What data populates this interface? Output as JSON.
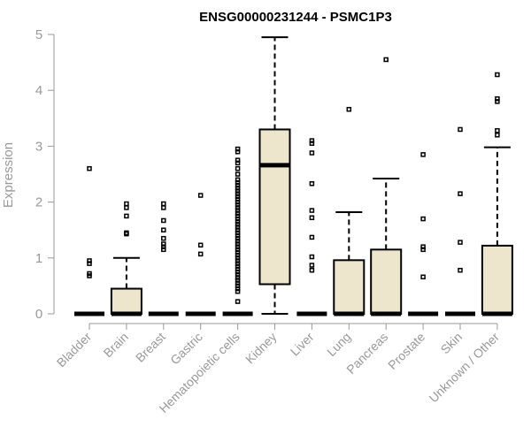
{
  "chart_data": {
    "type": "box",
    "title": "ENSG00000231244 - PSMC1P3",
    "ylabel": "Expression",
    "xlabel": "",
    "ylim": [
      0,
      5
    ],
    "yticks": [
      0,
      1,
      2,
      3,
      4,
      5
    ],
    "grid": false,
    "categories": [
      "Bladder",
      "Brain",
      "Breast",
      "Gastric",
      "Hematopoietic cells",
      "Kidney",
      "Liver",
      "Lung",
      "Pancreas",
      "Prostate",
      "Skin",
      "Unknown / Other"
    ],
    "boxes": [
      {
        "name": "Bladder",
        "min": 0,
        "q1": 0,
        "median": 0,
        "q3": 0,
        "max": 0,
        "outliers": [
          2.6,
          0.95,
          0.9,
          0.72,
          0.68
        ]
      },
      {
        "name": "Brain",
        "min": 0,
        "q1": 0,
        "median": 0,
        "q3": 0.45,
        "max": 1.0,
        "outliers": [
          1.97,
          1.9,
          1.75,
          1.45,
          1.43
        ]
      },
      {
        "name": "Breast",
        "min": 0,
        "q1": 0,
        "median": 0,
        "q3": 0,
        "max": 0,
        "outliers": [
          1.97,
          1.9,
          1.67,
          1.5,
          1.35,
          1.25,
          1.2,
          1.15
        ]
      },
      {
        "name": "Gastric",
        "min": 0,
        "q1": 0,
        "median": 0,
        "q3": 0,
        "max": 0,
        "outliers": [
          2.12,
          1.23,
          1.07
        ]
      },
      {
        "name": "Hematopoietic cells",
        "min": 0,
        "q1": 0,
        "median": 0,
        "q3": 0,
        "max": 0,
        "outliers": [
          2.95,
          2.9,
          2.75,
          2.7,
          2.6,
          2.5,
          2.4,
          2.35,
          2.3,
          2.25,
          2.2,
          2.15,
          2.1,
          2.05,
          2.0,
          1.95,
          1.9,
          1.85,
          1.8,
          1.75,
          1.7,
          1.65,
          1.6,
          1.55,
          1.5,
          1.45,
          1.4,
          1.35,
          1.3,
          1.25,
          1.2,
          1.15,
          1.1,
          1.05,
          1.0,
          0.95,
          0.9,
          0.85,
          0.8,
          0.75,
          0.7,
          0.65,
          0.6,
          0.55,
          0.5,
          0.45,
          0.4,
          0.22
        ]
      },
      {
        "name": "Kidney",
        "min": 0,
        "q1": 0.53,
        "median": 2.66,
        "q3": 3.3,
        "max": 4.95,
        "outliers": []
      },
      {
        "name": "Liver",
        "min": 0,
        "q1": 0,
        "median": 0,
        "q3": 0,
        "max": 0,
        "outliers": [
          3.1,
          3.05,
          2.88,
          2.33,
          1.85,
          1.72,
          1.37,
          1.02,
          0.87,
          0.78
        ]
      },
      {
        "name": "Lung",
        "min": 0,
        "q1": 0,
        "median": 0,
        "q3": 0.96,
        "max": 1.82,
        "outliers": [
          3.66
        ]
      },
      {
        "name": "Pancreas",
        "min": 0,
        "q1": 0,
        "median": 0,
        "q3": 1.15,
        "max": 2.42,
        "outliers": [
          4.55
        ]
      },
      {
        "name": "Prostate",
        "min": 0,
        "q1": 0,
        "median": 0,
        "q3": 0,
        "max": 0,
        "outliers": [
          2.85,
          1.7,
          1.2,
          1.15,
          0.66
        ]
      },
      {
        "name": "Skin",
        "min": 0,
        "q1": 0,
        "median": 0,
        "q3": 0,
        "max": 0,
        "outliers": [
          3.3,
          2.15,
          1.28,
          0.78
        ]
      },
      {
        "name": "Unknown / Other",
        "min": 0,
        "q1": 0,
        "median": 0,
        "q3": 1.22,
        "max": 2.98,
        "outliers": [
          4.28,
          3.85,
          3.8,
          3.28,
          3.2
        ]
      }
    ]
  }
}
